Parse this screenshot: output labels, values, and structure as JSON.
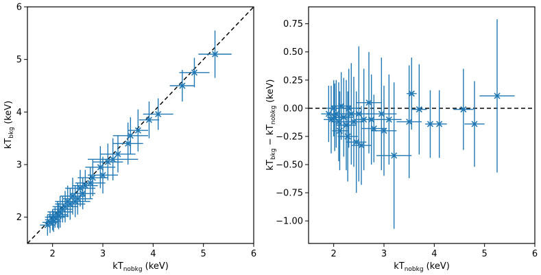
{
  "chart_data": [
    {
      "type": "scatter",
      "panel": "left",
      "xlabel": {
        "main": "kT",
        "sub": "nobkg",
        "unit": " (keV)"
      },
      "ylabel": {
        "main": "kT",
        "sub": "bkg",
        "unit": " (keV)"
      },
      "xlim": [
        1.5,
        6.0
      ],
      "ylim": [
        1.5,
        6.0
      ],
      "xticks": [
        "2",
        "3",
        "4",
        "5",
        "6"
      ],
      "yticks": [
        "2",
        "3",
        "4",
        "5",
        "6"
      ],
      "reference_line": {
        "label": "y = x",
        "style": "dashed",
        "from": [
          1.5,
          1.5
        ],
        "to": [
          6.0,
          6.0
        ]
      },
      "color": "#1f77b4",
      "series": [
        {
          "x": 5.23,
          "y": 5.1,
          "xerr": 0.33,
          "yerr": 0.45
        },
        {
          "x": 4.82,
          "y": 4.75,
          "xerr": 0.3,
          "yerr": 0.28
        },
        {
          "x": 4.58,
          "y": 4.5,
          "xerr": 0.25,
          "yerr": 0.3
        },
        {
          "x": 4.1,
          "y": 3.96,
          "xerr": 0.3,
          "yerr": 0.3
        },
        {
          "x": 3.92,
          "y": 3.85,
          "xerr": 0.2,
          "yerr": 0.35
        },
        {
          "x": 3.7,
          "y": 3.65,
          "xerr": 0.2,
          "yerr": 0.4
        },
        {
          "x": 3.55,
          "y": 3.55,
          "xerr": 0.35,
          "yerr": 0.35
        },
        {
          "x": 3.5,
          "y": 3.4,
          "xerr": 0.3,
          "yerr": 0.4
        },
        {
          "x": 3.2,
          "y": 3.1,
          "xerr": 0.5,
          "yerr": 0.4
        },
        {
          "x": 3.1,
          "y": 3.05,
          "xerr": 0.3,
          "yerr": 0.35
        },
        {
          "x": 2.95,
          "y": 2.95,
          "xerr": 0.3,
          "yerr": 0.4
        },
        {
          "x": 2.8,
          "y": 2.75,
          "xerr": 0.3,
          "yerr": 0.35
        },
        {
          "x": 2.65,
          "y": 2.6,
          "xerr": 0.25,
          "yerr": 0.3
        },
        {
          "x": 2.55,
          "y": 2.55,
          "xerr": 0.3,
          "yerr": 0.35
        },
        {
          "x": 2.5,
          "y": 2.35,
          "xerr": 0.3,
          "yerr": 0.3
        },
        {
          "x": 2.4,
          "y": 2.4,
          "xerr": 0.25,
          "yerr": 0.35
        },
        {
          "x": 2.35,
          "y": 2.25,
          "xerr": 0.3,
          "yerr": 0.3
        },
        {
          "x": 2.25,
          "y": 2.2,
          "xerr": 0.25,
          "yerr": 0.3
        },
        {
          "x": 2.2,
          "y": 2.15,
          "xerr": 0.2,
          "yerr": 0.25
        },
        {
          "x": 2.15,
          "y": 2.1,
          "xerr": 0.25,
          "yerr": 0.3
        },
        {
          "x": 2.1,
          "y": 2.05,
          "xerr": 0.2,
          "yerr": 0.25
        },
        {
          "x": 2.05,
          "y": 2.0,
          "xerr": 0.2,
          "yerr": 0.2
        },
        {
          "x": 2.0,
          "y": 1.95,
          "xerr": 0.15,
          "yerr": 0.2
        },
        {
          "x": 1.95,
          "y": 1.9,
          "xerr": 0.15,
          "yerr": 0.2
        },
        {
          "x": 1.9,
          "y": 1.85,
          "xerr": 0.15,
          "yerr": 0.2
        },
        {
          "x": 2.6,
          "y": 2.45,
          "xerr": 0.25,
          "yerr": 0.3
        },
        {
          "x": 3.0,
          "y": 2.8,
          "xerr": 0.3,
          "yerr": 0.35
        },
        {
          "x": 3.3,
          "y": 3.2,
          "xerr": 0.35,
          "yerr": 0.35
        },
        {
          "x": 2.75,
          "y": 2.65,
          "xerr": 0.3,
          "yerr": 0.3
        },
        {
          "x": 2.45,
          "y": 2.3,
          "xerr": 0.3,
          "yerr": 0.3
        },
        {
          "x": 2.3,
          "y": 2.3,
          "xerr": 0.25,
          "yerr": 0.3
        },
        {
          "x": 2.12,
          "y": 2.02,
          "xerr": 0.2,
          "yerr": 0.25
        },
        {
          "x": 2.02,
          "y": 1.92,
          "xerr": 0.15,
          "yerr": 0.2
        }
      ]
    },
    {
      "type": "scatter",
      "panel": "right",
      "xlabel": {
        "main": "kT",
        "sub": "nobkg",
        "unit": " (keV)"
      },
      "ylabel": {
        "a_main": "kT",
        "a_sub": "bkg",
        "op": " − ",
        "b_main": "kT",
        "b_sub": "nobkg",
        "unit": " (keV)"
      },
      "xlim": [
        1.5,
        6.0
      ],
      "ylim": [
        -1.2,
        0.9
      ],
      "xticks": [
        "2",
        "3",
        "4",
        "5",
        "6"
      ],
      "yticks": [
        "0.75",
        "0.50",
        "0.25",
        "0.00",
        "−0.25",
        "−0.50",
        "−0.75",
        "−1.00"
      ],
      "reference_line": {
        "label": "y = 0",
        "style": "dashed",
        "y": 0.0
      },
      "color": "#1f77b4",
      "series": [
        {
          "x": 5.25,
          "y": 0.11,
          "xerr": 0.35,
          "yerr": 0.68
        },
        {
          "x": 4.8,
          "y": -0.14,
          "xerr": 0.2,
          "yerr": 0.38
        },
        {
          "x": 4.58,
          "y": -0.01,
          "xerr": 0.2,
          "yerr": 0.36
        },
        {
          "x": 4.1,
          "y": -0.14,
          "xerr": 0.15,
          "yerr": 0.3
        },
        {
          "x": 3.92,
          "y": -0.14,
          "xerr": 0.1,
          "yerr": 0.3
        },
        {
          "x": 3.7,
          "y": -0.01,
          "xerr": 0.15,
          "yerr": 0.4
        },
        {
          "x": 3.55,
          "y": 0.13,
          "xerr": 0.1,
          "yerr": 0.32
        },
        {
          "x": 3.5,
          "y": -0.12,
          "xerr": 0.25,
          "yerr": 0.5
        },
        {
          "x": 3.2,
          "y": -0.42,
          "xerr": 0.35,
          "yerr": 0.65
        },
        {
          "x": 3.1,
          "y": -0.1,
          "xerr": 0.25,
          "yerr": 0.4
        },
        {
          "x": 2.95,
          "y": -0.05,
          "xerr": 0.3,
          "yerr": 0.5
        },
        {
          "x": 2.8,
          "y": -0.18,
          "xerr": 0.25,
          "yerr": 0.3
        },
        {
          "x": 2.7,
          "y": 0.05,
          "xerr": 0.25,
          "yerr": 0.45
        },
        {
          "x": 2.55,
          "y": -0.33,
          "xerr": 0.2,
          "yerr": 0.35
        },
        {
          "x": 2.5,
          "y": -0.05,
          "xerr": 0.2,
          "yerr": 0.6
        },
        {
          "x": 2.45,
          "y": -0.3,
          "xerr": 0.2,
          "yerr": 0.45
        },
        {
          "x": 2.4,
          "y": -0.12,
          "xerr": 0.2,
          "yerr": 0.4
        },
        {
          "x": 2.35,
          "y": -0.05,
          "xerr": 0.2,
          "yerr": 0.45
        },
        {
          "x": 2.3,
          "y": 0.0,
          "xerr": 0.2,
          "yerr": 0.35
        },
        {
          "x": 2.25,
          "y": -0.15,
          "xerr": 0.2,
          "yerr": 0.4
        },
        {
          "x": 2.2,
          "y": -0.08,
          "xerr": 0.2,
          "yerr": 0.35
        },
        {
          "x": 2.15,
          "y": 0.02,
          "xerr": 0.2,
          "yerr": 0.3
        },
        {
          "x": 2.1,
          "y": -0.12,
          "xerr": 0.15,
          "yerr": 0.35
        },
        {
          "x": 2.05,
          "y": -0.05,
          "xerr": 0.15,
          "yerr": 0.3
        },
        {
          "x": 2.0,
          "y": 0.0,
          "xerr": 0.15,
          "yerr": 0.25
        },
        {
          "x": 1.95,
          "y": -0.1,
          "xerr": 0.15,
          "yerr": 0.3
        },
        {
          "x": 1.9,
          "y": -0.05,
          "xerr": 0.15,
          "yerr": 0.25
        },
        {
          "x": 2.6,
          "y": -0.1,
          "xerr": 0.2,
          "yerr": 0.45
        },
        {
          "x": 3.0,
          "y": -0.2,
          "xerr": 0.25,
          "yerr": 0.4
        },
        {
          "x": 2.75,
          "y": -0.1,
          "xerr": 0.25,
          "yerr": 0.4
        },
        {
          "x": 2.12,
          "y": -0.2,
          "xerr": 0.15,
          "yerr": 0.35
        },
        {
          "x": 2.02,
          "y": -0.08,
          "xerr": 0.15,
          "yerr": 0.3
        },
        {
          "x": 2.28,
          "y": -0.25,
          "xerr": 0.2,
          "yerr": 0.4
        }
      ]
    }
  ]
}
